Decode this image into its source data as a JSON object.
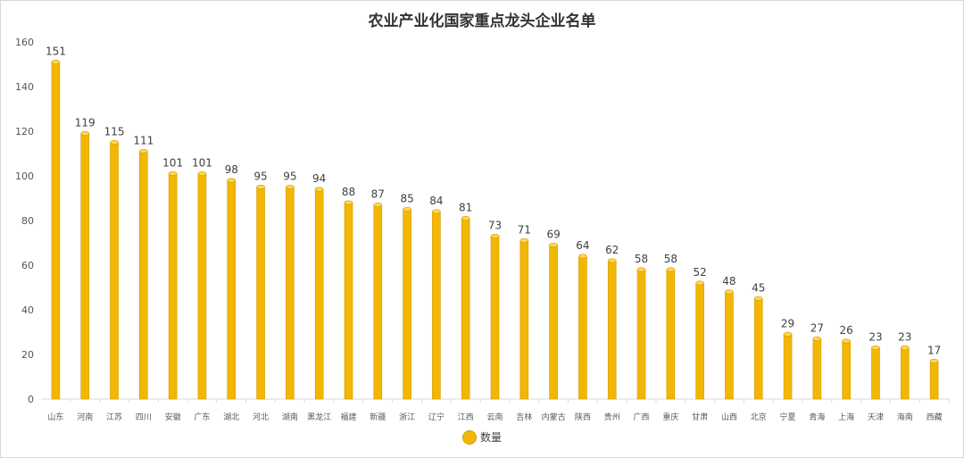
{
  "chart_data": {
    "type": "bar",
    "title": "农业产业化国家重点龙头企业名单",
    "categories": [
      "山东",
      "河南",
      "江苏",
      "四川",
      "安徽",
      "广东",
      "湖北",
      "河北",
      "湖南",
      "黑龙江",
      "福建",
      "新疆",
      "浙江",
      "辽宁",
      "江西",
      "云南",
      "吉林",
      "内蒙古",
      "陕西",
      "贵州",
      "广西",
      "重庆",
      "甘肃",
      "山西",
      "北京",
      "宁夏",
      "青海",
      "上海",
      "天津",
      "海南",
      "西藏"
    ],
    "series": [
      {
        "name": "数量",
        "values": [
          151,
          119,
          115,
          111,
          101,
          101,
          98,
          95,
          95,
          94,
          88,
          87,
          85,
          84,
          81,
          73,
          71,
          69,
          64,
          62,
          58,
          58,
          52,
          48,
          45,
          29,
          27,
          26,
          23,
          23,
          17
        ]
      }
    ],
    "ylim": [
      0,
      160
    ],
    "yticks": [
      0,
      20,
      40,
      60,
      80,
      100,
      120,
      140,
      160
    ],
    "xlabel": "",
    "ylabel": "",
    "grid": false,
    "legend": "bottom",
    "colors": {
      "bar": "#f2b705",
      "bar_edge": "#d99a00",
      "bar_top": "#ffd84d"
    }
  }
}
